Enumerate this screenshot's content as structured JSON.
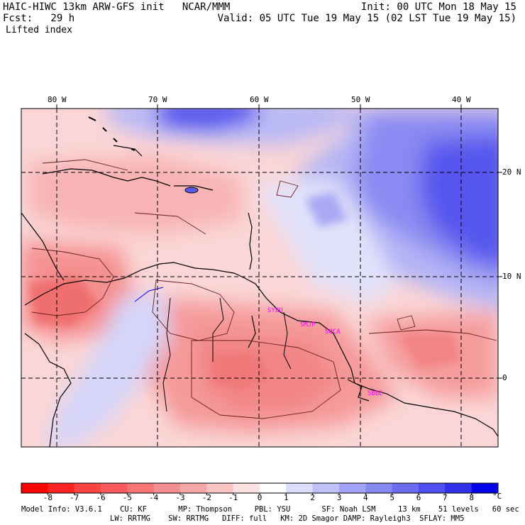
{
  "header": {
    "line1_left": "HAIC-HIWC 13km ARW-GFS init   NCAR/MMM",
    "line1_right": "Init: 00 UTC Mon 18 May 15",
    "line2_left": "Fcst:   29 h",
    "line2_right": "Valid: 05 UTC Tue 19 May 15 (02 LST Tue 19 May 15)",
    "field": "Lifted index"
  },
  "map": {
    "field_name": "Lifted index",
    "lon_labels": [
      "80 W",
      "70 W",
      "60 W",
      "50 W",
      "40 W"
    ],
    "lat_labels": [
      "20 N",
      "10 N",
      "0"
    ],
    "stations": [
      {
        "id": "SYEU",
        "color": "#ff00ff"
      },
      {
        "id": "SMJP",
        "color": "#ff00ff"
      },
      {
        "id": "SOCA",
        "color": "#ff00ff"
      },
      {
        "id": "SBBE",
        "color": "#ff00ff"
      }
    ]
  },
  "colorbar": {
    "unit": "°C",
    "labels": [
      "-8",
      "-7",
      "-6",
      "-5",
      "-4",
      "-3",
      "-2",
      "-1",
      "0",
      "1",
      "2",
      "3",
      "4",
      "5",
      "6",
      "7",
      "8"
    ],
    "colors": [
      "#ff0000",
      "#ff2222",
      "#ff4444",
      "#fa5a5a",
      "#f77474",
      "#f58e8e",
      "#f6a8a8",
      "#fac4c4",
      "#fde2e2",
      "#ffffff",
      "#dcdcfb",
      "#c0c0f8",
      "#a4a4f6",
      "#8888f3",
      "#6c6cf1",
      "#4f4fef",
      "#2f2fee",
      "#0000ea"
    ]
  },
  "footer": {
    "line1": "Model Info: V3.6.1    CU: KF       MP: Thompson     PBL: YSU       SF: Noah LSM     13 km    51 levels   60 sec",
    "line2": "LW: RRTMG    SW: RRTMG   DIFF: full   KM: 2D Smagor DAMP: Rayleigh3  SFLAY: MM5"
  }
}
